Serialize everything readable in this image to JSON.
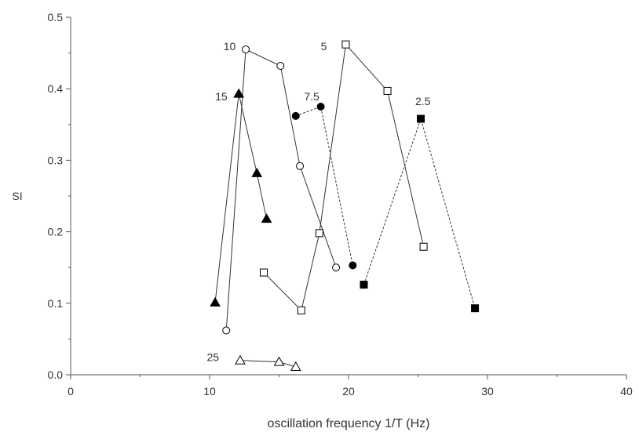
{
  "chart_data": {
    "type": "line",
    "xlabel": "oscillation frequency 1/T (Hz)",
    "ylabel": "SI",
    "xlim": [
      0,
      40
    ],
    "ylim": [
      0,
      0.5
    ],
    "xticks": [
      0,
      10,
      20,
      30,
      40
    ],
    "xtick_labels": [
      "0",
      "10",
      "20",
      "30",
      "40"
    ],
    "yticks": [
      0.0,
      0.1,
      0.2,
      0.3,
      0.4,
      0.5
    ],
    "ytick_labels": [
      "0.0",
      "0.1",
      "0.2",
      "0.3",
      "0.4",
      "0.5"
    ],
    "grid": false,
    "legend": "none",
    "series": [
      {
        "label": "15",
        "marker": "filled-triangle",
        "line": "solid",
        "x": [
          10.4,
          12.1,
          13.4,
          14.1
        ],
        "y": [
          0.101,
          0.393,
          0.282,
          0.218
        ]
      },
      {
        "label": "10",
        "marker": "open-circle",
        "line": "solid",
        "x": [
          11.2,
          12.6,
          15.1,
          16.5,
          19.1
        ],
        "y": [
          0.062,
          0.455,
          0.432,
          0.292,
          0.15
        ]
      },
      {
        "label": "7.5",
        "marker": "filled-circle",
        "line": "dashed",
        "x": [
          16.2,
          18.0,
          20.3
        ],
        "y": [
          0.362,
          0.375,
          0.153
        ]
      },
      {
        "label": "5",
        "marker": "open-square",
        "line": "solid",
        "x": [
          13.9,
          16.6,
          17.9,
          19.8,
          22.8,
          25.4
        ],
        "y": [
          0.143,
          0.09,
          0.198,
          0.462,
          0.397,
          0.179
        ]
      },
      {
        "label": "2.5",
        "marker": "filled-square",
        "line": "dashed",
        "x": [
          21.1,
          25.2,
          29.1
        ],
        "y": [
          0.126,
          0.358,
          0.093
        ]
      },
      {
        "label": "25",
        "marker": "open-triangle",
        "line": "solid",
        "x": [
          12.2,
          15.0,
          16.2
        ],
        "y": [
          0.02,
          0.018,
          0.011
        ]
      }
    ],
    "annotations": [
      {
        "text": "15",
        "x": 10.4,
        "y": 0.384
      },
      {
        "text": "10",
        "x": 11.0,
        "y": 0.454
      },
      {
        "text": "7.5",
        "x": 16.8,
        "y": 0.384
      },
      {
        "text": "5",
        "x": 18.0,
        "y": 0.454
      },
      {
        "text": "2.5",
        "x": 24.8,
        "y": 0.377
      },
      {
        "text": "25",
        "x": 9.8,
        "y": 0.019
      }
    ],
    "colors": {
      "axis": "#555555",
      "line": "#333333",
      "marker_fill": "#000000",
      "marker_open": "#ffffff"
    }
  }
}
